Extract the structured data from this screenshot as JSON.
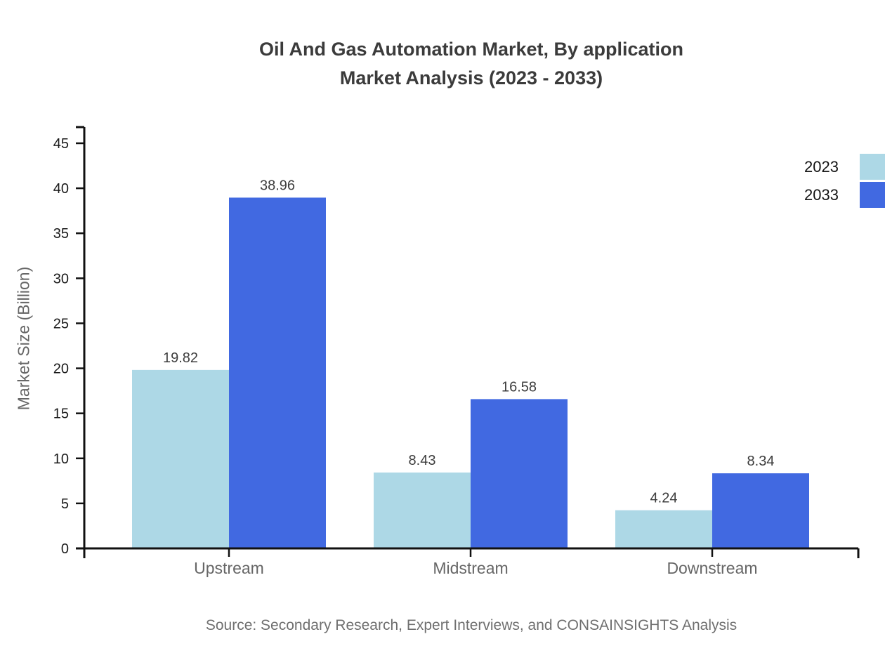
{
  "chart_data": {
    "type": "bar",
    "title": "Oil And Gas Automation Market, By application Market Analysis (2023 - 2033)",
    "title_lines": [
      "Oil And Gas Automation Market, By application",
      "Market Analysis (2023 - 2033)"
    ],
    "categories": [
      "Upstream",
      "Midstream",
      "Downstream"
    ],
    "series": [
      {
        "name": "2023",
        "color": "#ADD8E6",
        "values": [
          19.82,
          8.43,
          4.24
        ]
      },
      {
        "name": "2033",
        "color": "#4169E1",
        "values": [
          38.96,
          16.58,
          8.34
        ]
      }
    ],
    "xlabel": "",
    "ylabel": "Market Size (Billion)",
    "ylim": [
      0,
      45
    ],
    "ytick_step": 5,
    "ytick_labels": [
      "0",
      "5",
      "10",
      "15",
      "20",
      "25",
      "30",
      "35",
      "40",
      "45"
    ],
    "value_labels": [
      [
        "19.82",
        "8.43",
        "4.24"
      ],
      [
        "38.96",
        "16.58",
        "8.34"
      ]
    ],
    "grid": false,
    "legend_position": "top-right",
    "source": "Source: Secondary Research, Expert Interviews, and CONSAINSIGHTS Analysis"
  },
  "palette": {
    "axis": "#111111",
    "tick_label": "#1a1a1a",
    "category_label": "#666666",
    "value_label": "#3d3d3d",
    "title": "#3b3b3b",
    "source": "#6f6f6f"
  }
}
